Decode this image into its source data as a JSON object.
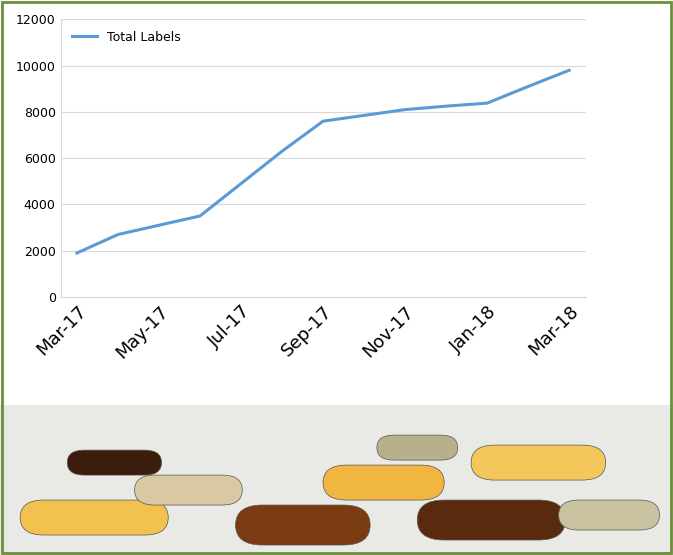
{
  "chart_data": {
    "type": "line",
    "categories": [
      "Mar-17",
      null,
      "May-17",
      null,
      "Jul-17",
      null,
      "Sep-17",
      null,
      "Nov-17",
      null,
      "Jan-18",
      null,
      "Mar-18"
    ],
    "series": [
      {
        "name": "Total Labels",
        "color": "#5b9bd5",
        "values": [
          1900,
          2700,
          3100,
          3500,
          4900,
          6300,
          7600,
          7850,
          8100,
          8250,
          8380,
          9100,
          9800
        ]
      }
    ],
    "ylim": [
      0,
      12000
    ],
    "yticks": [
      0,
      2000,
      4000,
      6000,
      8000,
      10000,
      12000
    ],
    "grid": true,
    "legend": "upper left"
  }
}
